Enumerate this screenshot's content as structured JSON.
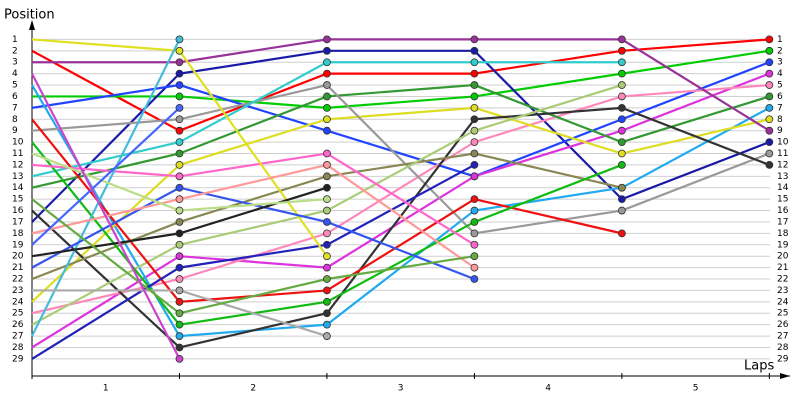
{
  "chart_data": {
    "type": "lap",
    "y_label": "Position",
    "x_label": "Laps",
    "x": [
      0,
      1,
      2,
      3,
      4,
      5
    ],
    "xlim": [
      0,
      5.14
    ],
    "xticks": [
      {
        "value": 0.5,
        "label": "1"
      },
      {
        "value": 1.5,
        "label": "2"
      },
      {
        "value": 2.5,
        "label": "3"
      },
      {
        "value": 3.5,
        "label": "4"
      },
      {
        "value": 4.5,
        "label": "5"
      }
    ],
    "ylim": [
      30.5,
      0
    ],
    "yticks": [
      1,
      2,
      3,
      4,
      5,
      6,
      7,
      8,
      9,
      10,
      11,
      12,
      13,
      14,
      15,
      16,
      17,
      18,
      19,
      20,
      21,
      22,
      23,
      24,
      25,
      26,
      27,
      28,
      29
    ],
    "grid": true,
    "series": [
      {
        "color": "#ff0000",
        "values": [
          2,
          9,
          4,
          4,
          2,
          1
        ]
      },
      {
        "color": "#00cc00",
        "values": [
          6,
          6,
          7,
          6,
          4,
          2
        ]
      },
      {
        "color": "#1a1aa8",
        "values": [
          17,
          4,
          2,
          2,
          15,
          10
        ]
      },
      {
        "color": "#2244ff",
        "values": [
          7,
          5,
          9,
          13,
          8,
          3
        ]
      },
      {
        "color": "#dd33dd",
        "values": [
          28,
          20,
          21,
          13,
          9,
          4
        ]
      },
      {
        "color": "#ff88bb",
        "values": [
          25,
          22,
          18,
          10,
          6,
          5
        ]
      },
      {
        "color": "#339933",
        "values": [
          14,
          11,
          6,
          5,
          10,
          6
        ]
      },
      {
        "color": "#22aaee",
        "values": [
          5,
          27,
          26,
          16,
          14,
          7
        ]
      },
      {
        "color": "#dddd22",
        "values": [
          24,
          12,
          8,
          7,
          11,
          8
        ]
      },
      {
        "color": "#993399",
        "values": [
          3,
          3,
          1,
          1,
          1,
          9
        ]
      },
      {
        "color": "#999999",
        "values": [
          9,
          8,
          5,
          18,
          16,
          11
        ]
      },
      {
        "color": "#333333",
        "values": [
          16,
          28,
          25,
          8,
          7,
          12
        ]
      },
      {
        "color": "#33cccc",
        "values": [
          13,
          10,
          3,
          3,
          3,
          null
        ]
      },
      {
        "color": "#888855",
        "values": [
          22,
          17,
          13,
          11,
          14,
          null
        ]
      },
      {
        "color": "#aacc77",
        "values": [
          26,
          19,
          16,
          9,
          5,
          null
        ]
      },
      {
        "color": "#ee1111",
        "values": [
          8,
          24,
          23,
          15,
          18,
          null
        ]
      },
      {
        "color": "#11bb11",
        "values": [
          10,
          26,
          24,
          17,
          12,
          null
        ]
      },
      {
        "color": "#2222bb",
        "values": [
          29,
          21,
          19,
          12,
          null,
          null
        ]
      },
      {
        "color": "#ff66cc",
        "values": [
          12,
          13,
          11,
          19,
          null,
          null
        ]
      },
      {
        "color": "#e0e022",
        "values": [
          1,
          2,
          20,
          null,
          null,
          null
        ]
      },
      {
        "color": "#44bbdd",
        "values": [
          27,
          1,
          null,
          null,
          null,
          null
        ]
      },
      {
        "color": "#3355ee",
        "values": [
          21,
          14,
          17,
          22,
          null,
          null
        ]
      },
      {
        "color": "#ff9999",
        "values": [
          18,
          15,
          12,
          21,
          null,
          null
        ]
      },
      {
        "color": "#aaaaaa",
        "values": [
          23,
          23,
          27,
          null,
          null,
          null
        ]
      },
      {
        "color": "#222222",
        "values": [
          20,
          18,
          14,
          null,
          null,
          null
        ]
      },
      {
        "color": "#66aa44",
        "values": [
          15,
          25,
          22,
          20,
          null,
          null
        ]
      },
      {
        "color": "#bbdd88",
        "values": [
          11,
          16,
          15,
          null,
          null,
          null
        ]
      },
      {
        "color": "#4466ff",
        "values": [
          19,
          7,
          null,
          null,
          null,
          null
        ]
      },
      {
        "color": "#cc44cc",
        "values": [
          4,
          29,
          null,
          null,
          null,
          null
        ]
      }
    ]
  }
}
